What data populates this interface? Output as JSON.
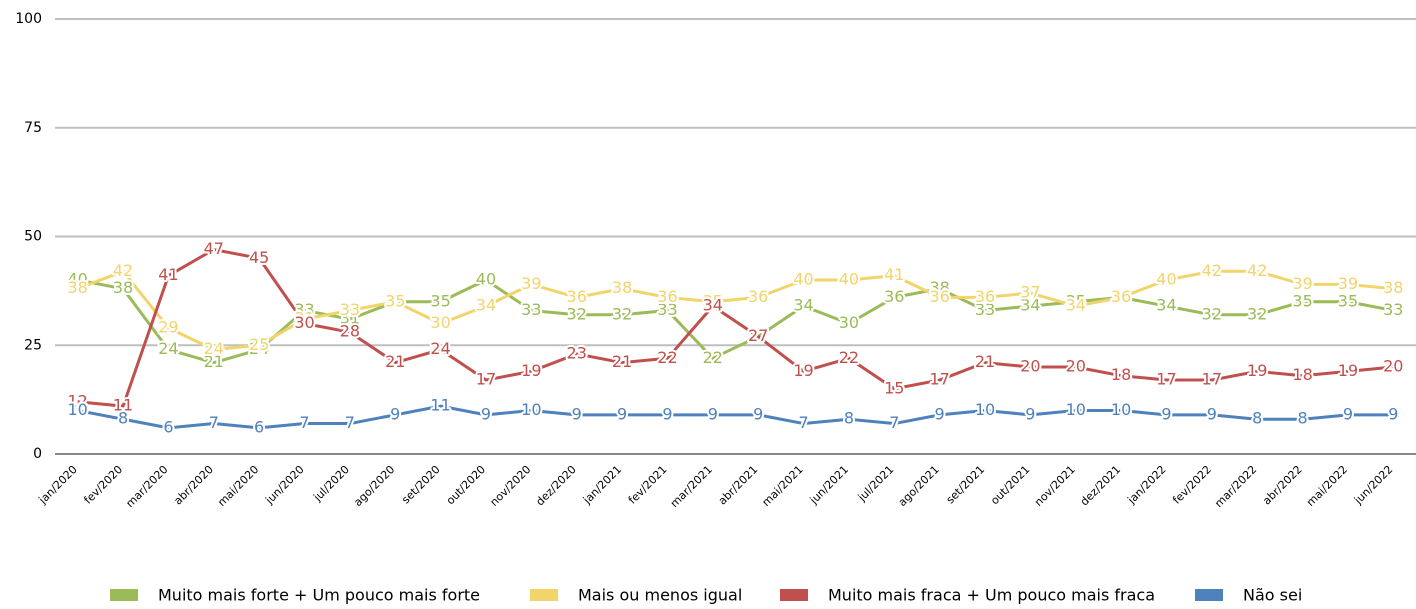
{
  "chart_data": {
    "type": "line",
    "categories": [
      "jan/2020",
      "fev/2020",
      "mar/2020",
      "abr/2020",
      "mai/2020",
      "jun/2020",
      "jul/2020",
      "ago/2020",
      "set/2020",
      "out/2020",
      "nov/2020",
      "dez/2020",
      "jan/2021",
      "fev/2021",
      "mar/2021",
      "abr/2021",
      "mai/2021",
      "jun/2021",
      "jul/2021",
      "ago/2021",
      "set/2021",
      "out/2021",
      "nov/2021",
      "dez/2021",
      "jan/2022",
      "fev/2022",
      "mar/2022",
      "abr/2022",
      "mai/2022",
      "jun/2022"
    ],
    "series": [
      {
        "name": "Muito mais forte + Um pouco mais forte",
        "color": "#9bbb59",
        "values": [
          40,
          38,
          24,
          21,
          24,
          33,
          31,
          35,
          35,
          40,
          33,
          32,
          32,
          33,
          22,
          27,
          34,
          30,
          36,
          38,
          33,
          34,
          35,
          36,
          34,
          32,
          32,
          35,
          35,
          33
        ]
      },
      {
        "name": "Mais ou menos igual",
        "color": "#f2d46b",
        "values": [
          38,
          42,
          29,
          24,
          25,
          31,
          33,
          35,
          30,
          34,
          39,
          36,
          38,
          36,
          35,
          36,
          40,
          40,
          41,
          36,
          36,
          37,
          34,
          36,
          40,
          42,
          42,
          39,
          39,
          38
        ]
      },
      {
        "name": "Muito mais fraca + Um pouco mais fraca",
        "color": "#c0504d",
        "values": [
          12,
          11,
          41,
          47,
          45,
          30,
          28,
          21,
          24,
          17,
          19,
          23,
          21,
          22,
          34,
          27,
          19,
          22,
          15,
          17,
          21,
          20,
          20,
          18,
          17,
          17,
          19,
          18,
          19,
          20
        ]
      },
      {
        "name": "Não sei",
        "color": "#4f81bd",
        "values": [
          10,
          8,
          6,
          7,
          6,
          7,
          7,
          9,
          11,
          9,
          10,
          9,
          9,
          9,
          9,
          9,
          7,
          8,
          7,
          9,
          10,
          9,
          10,
          10,
          9,
          9,
          8,
          8,
          9,
          9
        ]
      }
    ],
    "ylim": [
      0,
      100
    ],
    "yticks": [
      0,
      25,
      50,
      75,
      100
    ],
    "grid": true,
    "legend": "bottom"
  }
}
